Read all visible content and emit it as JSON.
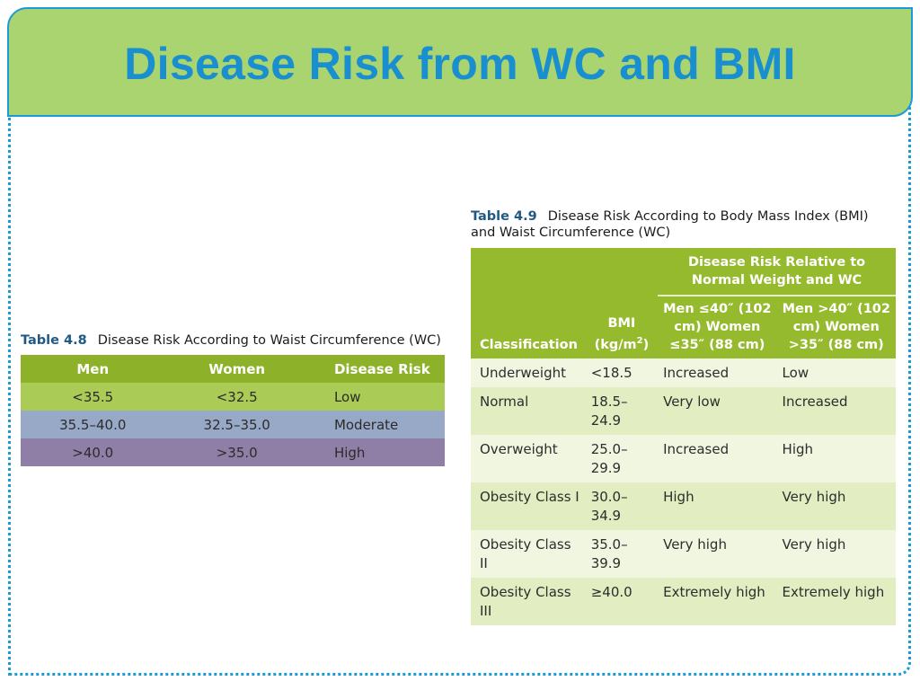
{
  "slide": {
    "title": "Disease Risk from WC and BMI"
  },
  "table48": {
    "caption_num": "Table 4.8",
    "caption_text": "Disease Risk According to Waist Circumference (WC)",
    "headers": [
      "Men",
      "Women",
      "Disease Risk"
    ],
    "rows": [
      {
        "men": "<35.5",
        "women": "<32.5",
        "risk": "Low",
        "color": "#aacb55"
      },
      {
        "men": "35.5–40.0",
        "women": "32.5–35.0",
        "risk": "Moderate",
        "color": "#98a9c8"
      },
      {
        "men": ">40.0",
        "women": ">35.0",
        "risk": "High",
        "color": "#8f7fa6"
      }
    ],
    "header_color": "#8db22a"
  },
  "table49": {
    "caption_num": "Table 4.9",
    "caption_text": "Disease Risk According to Body Mass Index (BMI) and Waist Circumference (WC)",
    "headers": {
      "classification": "Classification",
      "bmi_line1": "BMI",
      "bmi_line2": "(kg/m",
      "bmi_sup": "2",
      "bmi_close": ")",
      "group": "Disease Risk Relative to Normal Weight and WC",
      "col_low": "Men ≤40″ (102 cm) Women ≤35″ (88 cm)",
      "col_high": "Men >40″ (102 cm) Women >35″ (88 cm)"
    },
    "rows": [
      {
        "classification": "Underweight",
        "bmi": "<18.5",
        "low": "Increased",
        "high": "Low"
      },
      {
        "classification": "Normal",
        "bmi": "18.5–24.9",
        "low": "Very low",
        "high": "Increased"
      },
      {
        "classification": "Overweight",
        "bmi": "25.0–29.9",
        "low": "Increased",
        "high": "High"
      },
      {
        "classification": "Obesity Class I",
        "bmi": "30.0–34.9",
        "low": "High",
        "high": "Very high"
      },
      {
        "classification": "Obesity Class II",
        "bmi": "35.0–39.9",
        "low": "Very high",
        "high": "Very high"
      },
      {
        "classification": "Obesity Class III",
        "bmi": "≥40.0",
        "low": "Extremely high",
        "high": "Extremely high"
      }
    ],
    "header_color": "#96ba2e"
  }
}
